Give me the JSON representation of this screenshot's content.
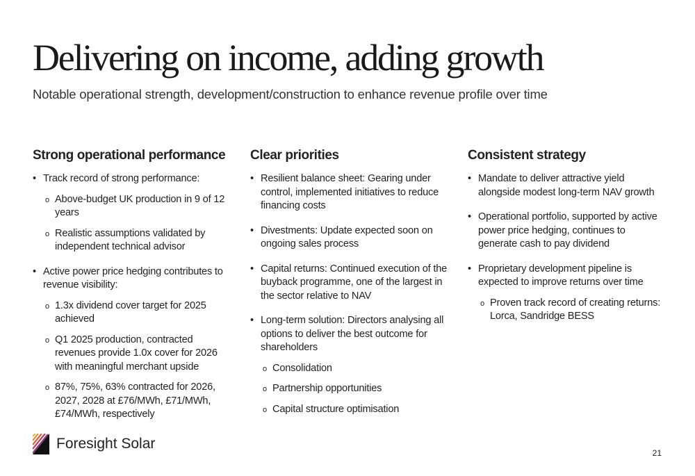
{
  "header": {
    "title": "Delivering on income, adding growth",
    "subtitle": "Notable operational strength, development/construction to enhance revenue profile over time"
  },
  "columns": [
    {
      "heading": "Strong operational performance",
      "items": [
        {
          "text": "Track record of strong performance:",
          "subitems": [
            "Above-budget UK production in 9 of 12 years",
            "Realistic assumptions validated by independent technical advisor"
          ]
        },
        {
          "text": "Active power price hedging contributes to revenue visibility:",
          "subitems": [
            "1.3x dividend cover target for 2025 achieved",
            "Q1 2025 production, contracted revenues provide 1.0x cover for 2026 with meaningful merchant upside",
            "87%, 75%, 63% contracted for 2026, 2027, 2028 at £76/MWh, £71/MWh, £74/MWh, respectively"
          ]
        }
      ]
    },
    {
      "heading": "Clear priorities",
      "items": [
        {
          "text": "Resilient balance sheet: Gearing under control, implemented initiatives to reduce financing costs",
          "subitems": []
        },
        {
          "text": "Divestments: Update expected soon on ongoing sales process",
          "subitems": []
        },
        {
          "text": "Capital returns: Continued execution of the buyback programme, one of the largest in the sector relative to NAV",
          "subitems": []
        },
        {
          "text": "Long-term solution: Directors analysing all options to deliver the best outcome for shareholders",
          "subitems": [
            "Consolidation",
            "Partnership opportunities",
            "Capital structure optimisation"
          ]
        }
      ]
    },
    {
      "heading": "Consistent strategy",
      "items": [
        {
          "text": "Mandate to deliver attractive yield alongside modest long-term NAV growth",
          "subitems": []
        },
        {
          "text": "Operational portfolio, supported by active power price hedging, continues to generate cash to pay dividend",
          "subitems": []
        },
        {
          "text": "Proprietary development pipeline is expected to improve returns over time",
          "subitems": [
            "Proven track record of creating returns: Lorca, Sandridge BESS"
          ]
        }
      ]
    }
  ],
  "footer": {
    "logo": "Foresight Solar",
    "page": "21"
  }
}
